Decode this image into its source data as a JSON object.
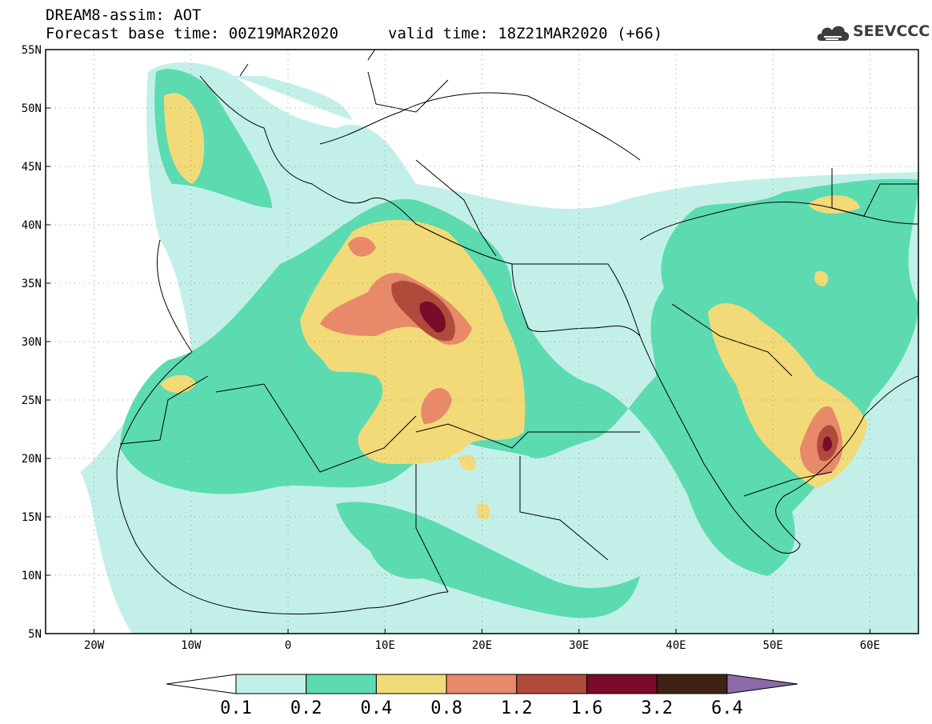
{
  "header": {
    "title": "DREAM8-assim: AOT",
    "base_time": "Forecast base time: 00Z19MAR2020",
    "valid_time": "valid time: 18Z21MAR2020 (+66)"
  },
  "logo": {
    "text": "SEEVCCC",
    "icon": "cloud-logo-icon"
  },
  "map": {
    "lon_range": [
      -25,
      65
    ],
    "lat_range": [
      5,
      55
    ],
    "lon_ticks": [
      {
        "value": -20,
        "label": "20W"
      },
      {
        "value": -10,
        "label": "10W"
      },
      {
        "value": 0,
        "label": "0"
      },
      {
        "value": 10,
        "label": "10E"
      },
      {
        "value": 20,
        "label": "20E"
      },
      {
        "value": 30,
        "label": "30E"
      },
      {
        "value": 40,
        "label": "40E"
      },
      {
        "value": 50,
        "label": "50E"
      },
      {
        "value": 60,
        "label": "60E"
      }
    ],
    "lat_ticks": [
      {
        "value": 55,
        "label": "55N"
      },
      {
        "value": 50,
        "label": "50N"
      },
      {
        "value": 45,
        "label": "45N"
      },
      {
        "value": 40,
        "label": "40N"
      },
      {
        "value": 35,
        "label": "35N"
      },
      {
        "value": 30,
        "label": "30N"
      },
      {
        "value": 25,
        "label": "25N"
      },
      {
        "value": 20,
        "label": "20N"
      },
      {
        "value": 15,
        "label": "15N"
      },
      {
        "value": 10,
        "label": "10N"
      },
      {
        "value": 5,
        "label": "5N"
      }
    ],
    "grid": true,
    "colors": {
      "level_0_1": "#c2f0e8",
      "level_0_2": "#5cdbb1",
      "level_0_4": "#f2da78",
      "level_0_8": "#e8896a",
      "level_1_2": "#b04a3a",
      "level_1_6": "#7c0a2a",
      "level_3_2": "#3e2314",
      "level_6_4": "#8c6aa8"
    }
  },
  "colorbar": {
    "labels": [
      "0.1",
      "0.2",
      "0.4",
      "0.8",
      "1.2",
      "1.6",
      "3.2",
      "6.4"
    ],
    "colors": [
      "#c2f0e8",
      "#5cdbb1",
      "#f2da78",
      "#e8896a",
      "#b04a3a",
      "#7c0a2a",
      "#3e2314"
    ],
    "under_color": "#ffffff",
    "over_color": "#8c6aa8"
  }
}
